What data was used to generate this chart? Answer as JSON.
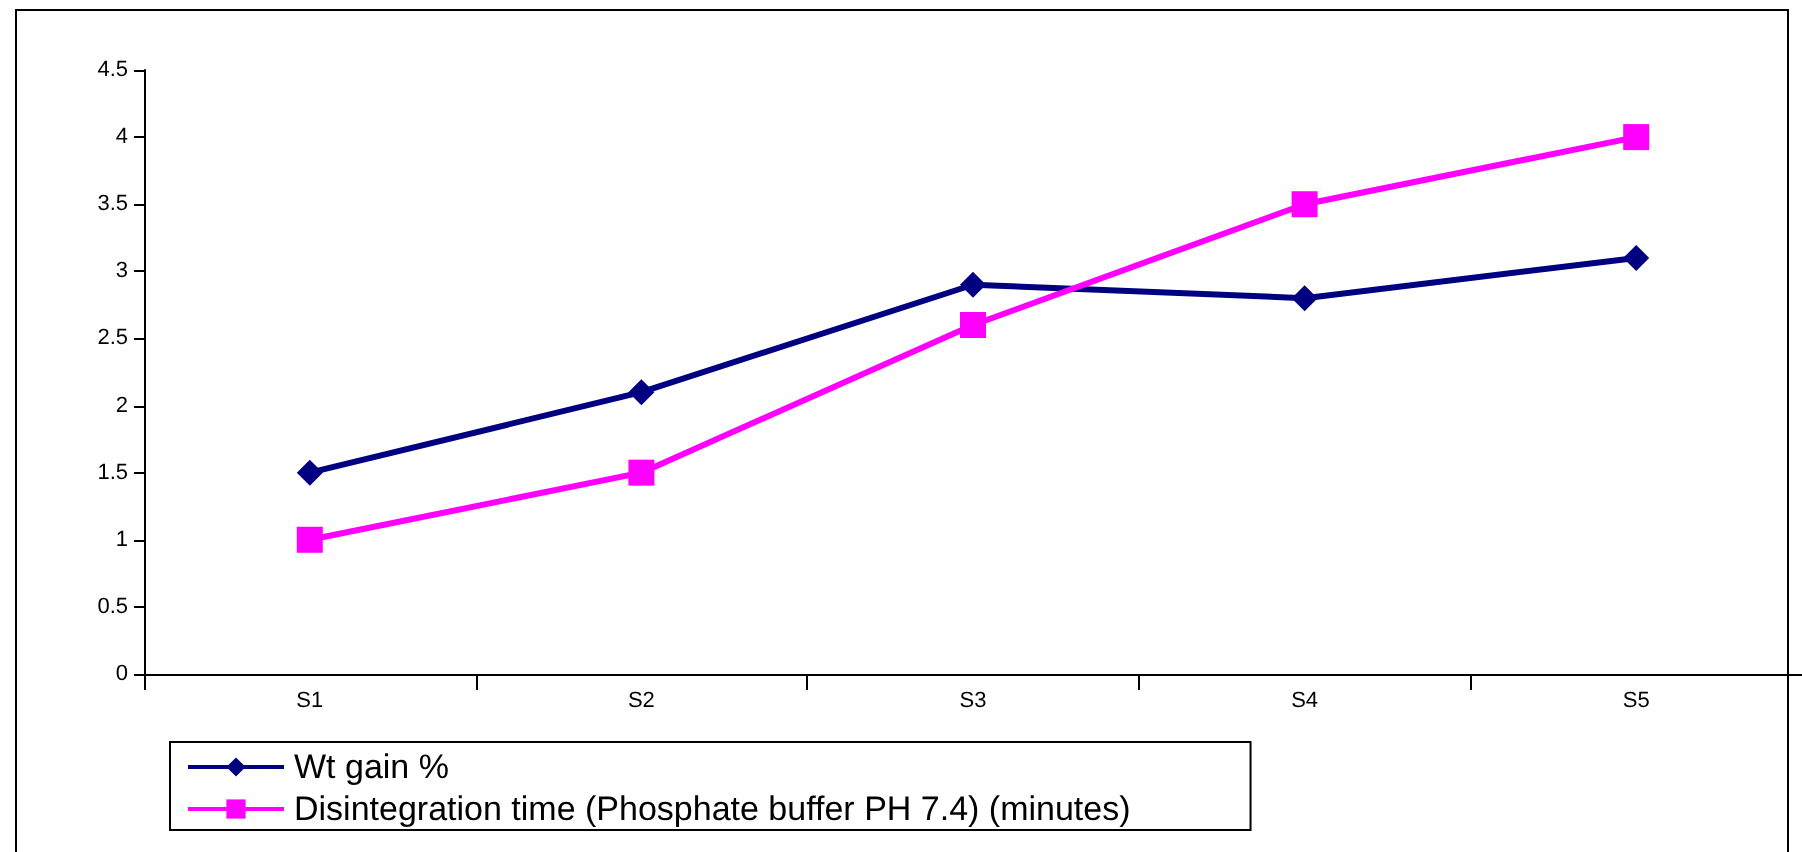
{
  "chart_data": {
    "type": "line",
    "categories": [
      "S1",
      "S2",
      "S3",
      "S4",
      "S5"
    ],
    "series": [
      {
        "name": "Wt gain %",
        "color": "#000080",
        "marker": "diamond",
        "values": [
          1.5,
          2.1,
          2.9,
          2.8,
          3.1
        ]
      },
      {
        "name": "Disintegration time (Phosphate buffer PH 7.4) (minutes)",
        "color": "#ff00ff",
        "marker": "square",
        "values": [
          1.0,
          1.5,
          2.6,
          3.5,
          4.0
        ]
      }
    ],
    "ylim": [
      0,
      4.5
    ],
    "yticks": [
      0,
      0.5,
      1,
      1.5,
      2,
      2.5,
      3,
      3.5,
      4,
      4.5
    ],
    "grid": false,
    "legend": "bottom",
    "line_style": "solid"
  }
}
